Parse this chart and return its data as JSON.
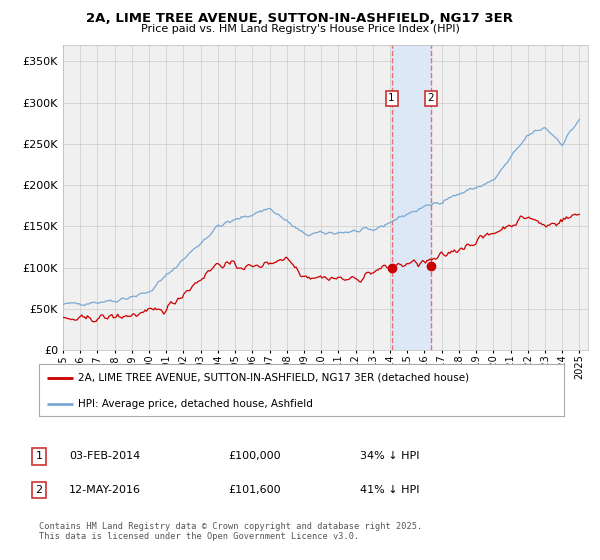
{
  "title": "2A, LIME TREE AVENUE, SUTTON-IN-ASHFIELD, NG17 3ER",
  "subtitle": "Price paid vs. HM Land Registry's House Price Index (HPI)",
  "legend_red": "2A, LIME TREE AVENUE, SUTTON-IN-ASHFIELD, NG17 3ER (detached house)",
  "legend_blue": "HPI: Average price, detached house, Ashfield",
  "annotation1_label": "1",
  "annotation1_date": "03-FEB-2014",
  "annotation1_price": "£100,000",
  "annotation1_hpi": "34% ↓ HPI",
  "annotation2_label": "2",
  "annotation2_date": "12-MAY-2016",
  "annotation2_price": "£101,600",
  "annotation2_hpi": "41% ↓ HPI",
  "footer": "Contains HM Land Registry data © Crown copyright and database right 2025.\nThis data is licensed under the Open Government Licence v3.0.",
  "red_color": "#cc0000",
  "blue_color": "#7aa8d2",
  "marker_color": "#cc0000",
  "vline_color": "#e87070",
  "shade_color": "#dce8f5",
  "background_color": "#f0f0f0",
  "grid_color": "#cccccc",
  "ylim": [
    0,
    370000
  ],
  "yticks": [
    0,
    50000,
    100000,
    150000,
    200000,
    250000,
    300000,
    350000
  ],
  "date1_num": 2014.09,
  "date2_num": 2016.37,
  "sale1_value": 100000,
  "sale2_value": 101600,
  "xstart": 1995,
  "xend": 2025.5
}
